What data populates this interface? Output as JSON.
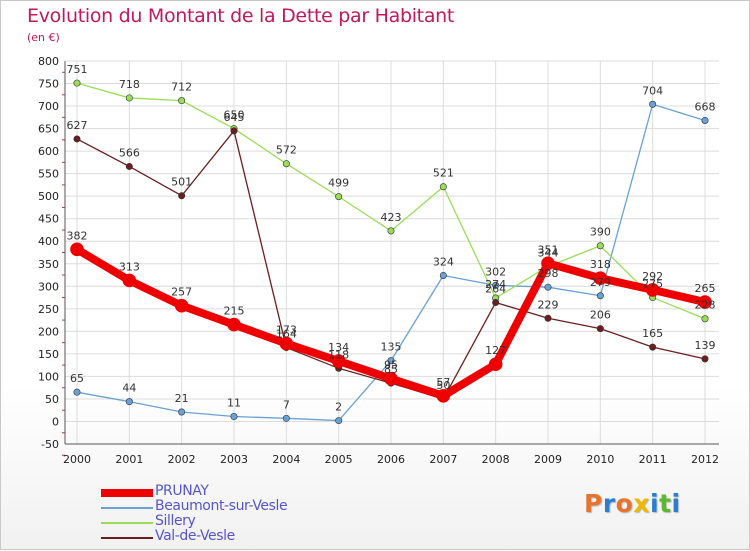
{
  "header": {
    "title": "Evolution du Montant de la Dette par Habitant",
    "subtitle": "(en €)"
  },
  "colors": {
    "title": "#c2185b",
    "legend_text": "#5555cc",
    "grid": "#dcdcdc"
  },
  "logo": {
    "text": "Proxiti"
  },
  "chart_data": {
    "type": "line",
    "title": "Evolution du Montant de la Dette par Habitant",
    "subtitle": "(en €)",
    "xlabel": "",
    "ylabel": "",
    "categories": [
      "2000",
      "2001",
      "2002",
      "2003",
      "2004",
      "2005",
      "2006",
      "2007",
      "2008",
      "2009",
      "2010",
      "2011",
      "2012"
    ],
    "y_ticks": [
      "-50",
      "0",
      "50",
      "100",
      "150",
      "200",
      "250",
      "300",
      "350",
      "400",
      "450",
      "500",
      "550",
      "600",
      "650",
      "700",
      "750",
      "800"
    ],
    "ylim": [
      -50,
      800
    ],
    "grid": true,
    "legend_position": "bottom-left",
    "series": [
      {
        "name": "PRUNAY",
        "color": "#ee0000",
        "width": 8,
        "values": [
          382,
          313,
          257,
          215,
          173,
          134,
          95,
          57,
          127,
          351,
          318,
          292,
          265
        ]
      },
      {
        "name": "Beaumont-sur-Vesle",
        "color": "#6aa1d4",
        "width": 1.3,
        "values": [
          65,
          44,
          21,
          11,
          7,
          2,
          135,
          324,
          302,
          298,
          279,
          704,
          668
        ]
      },
      {
        "name": "Sillery",
        "color": "#99dd55",
        "width": 1.3,
        "values": [
          751,
          718,
          712,
          650,
          572,
          499,
          423,
          521,
          274,
          344,
          390,
          275,
          228
        ]
      },
      {
        "name": "Val-de-Vesle",
        "color": "#6b1e1e",
        "width": 1.3,
        "values": [
          627,
          566,
          501,
          645,
          164,
          118,
          85,
          50,
          264,
          229,
          206,
          165,
          139
        ]
      }
    ]
  }
}
